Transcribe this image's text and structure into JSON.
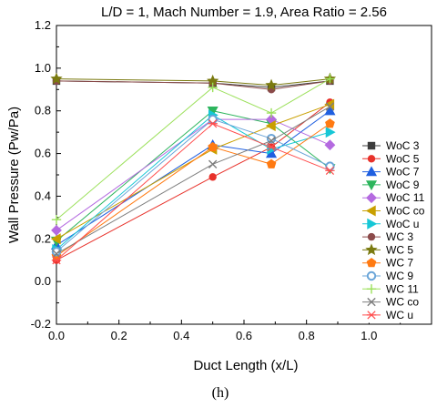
{
  "chart_data": {
    "type": "line",
    "title": "L/D = 1, Mach Number = 1.9, Area Ratio = 2.56",
    "xlabel": "Duct Length (x/L)",
    "ylabel": "Wall Pressure (Pw/Pa)",
    "caption": "(h)",
    "xlim": [
      0.0,
      1.2
    ],
    "ylim": [
      -0.2,
      1.2
    ],
    "xticks": [
      "0.0",
      "0.2",
      "0.4",
      "0.6",
      "0.8",
      "1.0"
    ],
    "yticks": [
      "-0.2",
      "0.0",
      "0.2",
      "0.4",
      "0.6",
      "0.8",
      "1.0",
      "1.2"
    ],
    "x": [
      0.0,
      0.5,
      0.6875,
      0.875
    ],
    "legend_position": "right",
    "series": [
      {
        "name": "WoC 3",
        "color": "#3c3c3c",
        "marker": "square",
        "values": [
          0.94,
          0.93,
          0.91,
          0.94
        ]
      },
      {
        "name": "WoC 5",
        "color": "#e8312a",
        "marker": "circle",
        "values": [
          0.1,
          0.49,
          0.63,
          0.84
        ]
      },
      {
        "name": "WoC 7",
        "color": "#1f5fe0",
        "marker": "triangle-up",
        "values": [
          0.17,
          0.64,
          0.6,
          0.8
        ]
      },
      {
        "name": "WoC 9",
        "color": "#2db55d",
        "marker": "triangle-down",
        "values": [
          0.19,
          0.8,
          0.74,
          0.53
        ]
      },
      {
        "name": "WoC 11",
        "color": "#b46ae0",
        "marker": "diamond",
        "values": [
          0.24,
          0.76,
          0.76,
          0.64
        ]
      },
      {
        "name": "WoC co",
        "color": "#c9a000",
        "marker": "triangle-left",
        "values": [
          0.2,
          0.62,
          0.73,
          0.83
        ]
      },
      {
        "name": "WoC u",
        "color": "#16c7d6",
        "marker": "triangle-right",
        "values": [
          0.15,
          0.78,
          0.62,
          0.7
        ]
      },
      {
        "name": "WC 3",
        "color": "#8b4a4a",
        "marker": "circle",
        "values": [
          0.94,
          0.93,
          0.9,
          0.94
        ]
      },
      {
        "name": "WC 5",
        "color": "#7a7a10",
        "marker": "star",
        "values": [
          0.95,
          0.94,
          0.92,
          0.95
        ]
      },
      {
        "name": "WC 7",
        "color": "#ff7a12",
        "marker": "pentagon",
        "values": [
          0.12,
          0.63,
          0.55,
          0.74
        ]
      },
      {
        "name": "WC 9",
        "color": "#6aa5d8",
        "marker": "circle-dot",
        "values": [
          0.14,
          0.76,
          0.67,
          0.54
        ]
      },
      {
        "name": "WC 11",
        "color": "#9be05a",
        "marker": "plus",
        "values": [
          0.29,
          0.91,
          0.79,
          0.95
        ]
      },
      {
        "name": "WC co",
        "color": "#7d7d7d",
        "marker": "x",
        "values": [
          0.13,
          0.55,
          0.66,
          0.82
        ]
      },
      {
        "name": "WC u",
        "color": "#ff4d4d",
        "marker": "asterisk",
        "values": [
          0.1,
          0.74,
          0.63,
          0.52
        ]
      }
    ]
  }
}
